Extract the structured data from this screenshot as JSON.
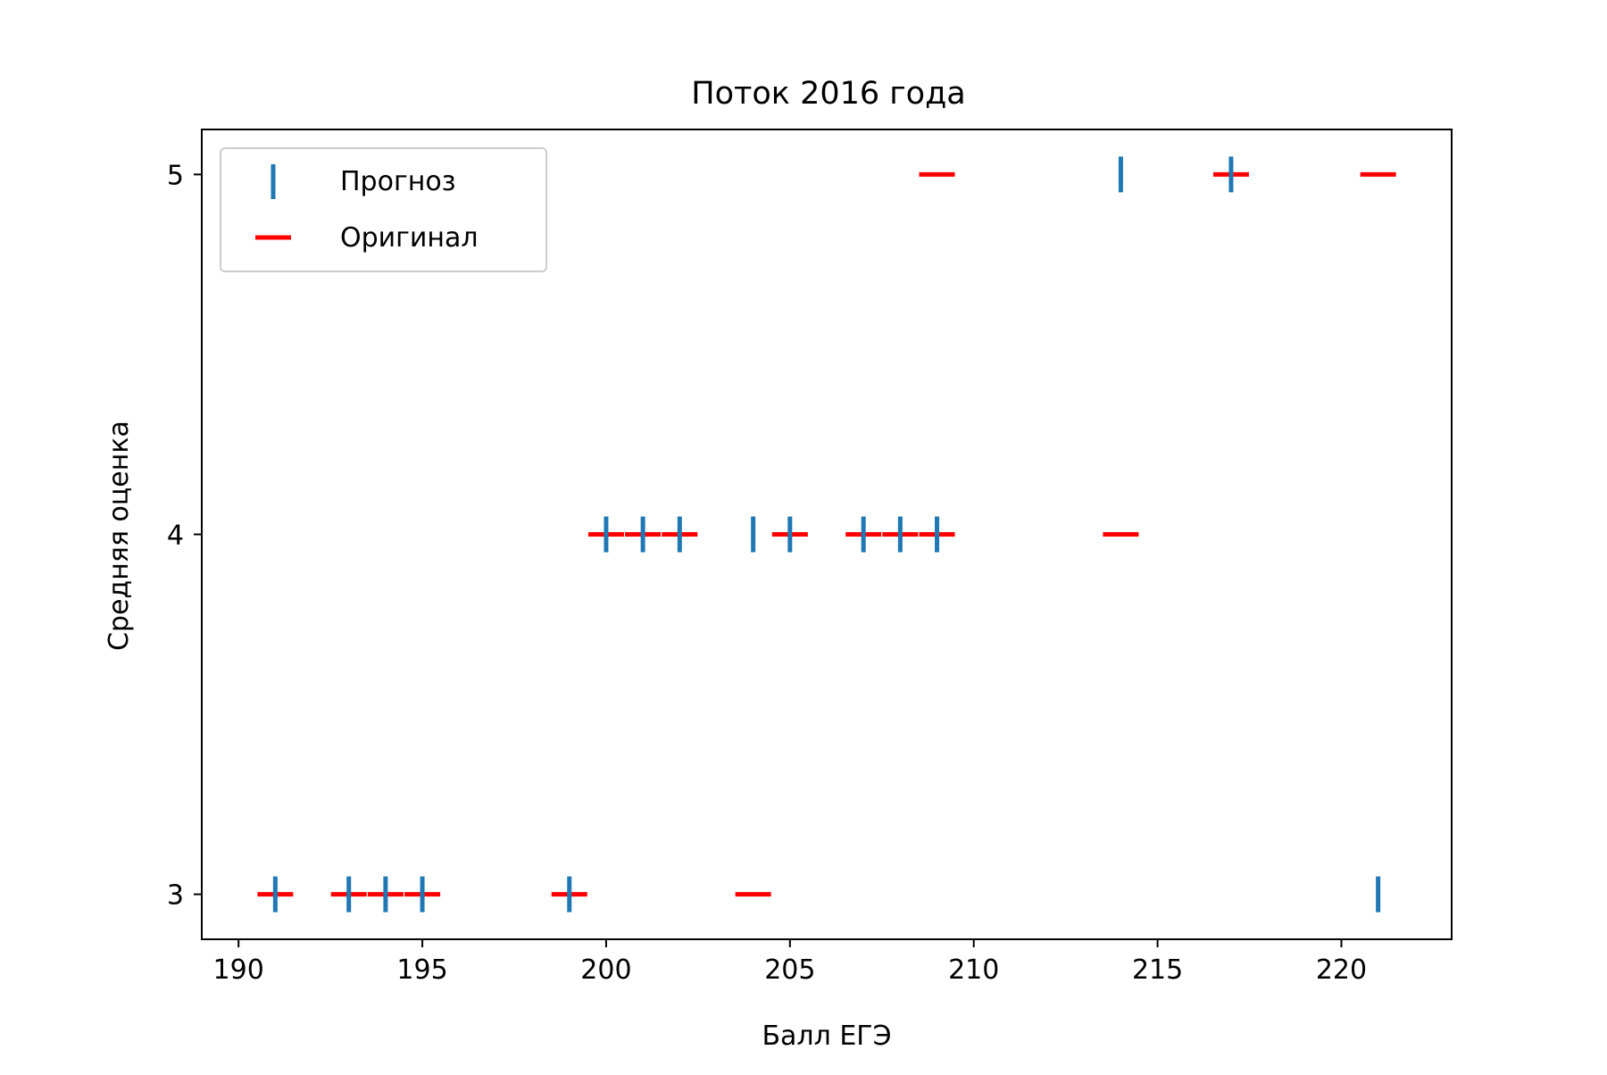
{
  "chart_data": {
    "type": "scatter",
    "title": "Поток 2016 года",
    "xlabel": "Балл ЕГЭ",
    "ylabel": "Средняя оценка",
    "xlim": [
      189,
      223
    ],
    "ylim": [
      2.875,
      5.125
    ],
    "xticks": [
      190,
      195,
      200,
      205,
      210,
      215,
      220
    ],
    "yticks": [
      3,
      4,
      5
    ],
    "grid": false,
    "legend": "top-left",
    "series": [
      {
        "name": "Прогноз",
        "marker": "vline",
        "color": "#1f77b4",
        "points": [
          {
            "x": 191,
            "y": 3
          },
          {
            "x": 193,
            "y": 3
          },
          {
            "x": 194,
            "y": 3
          },
          {
            "x": 195,
            "y": 3
          },
          {
            "x": 199,
            "y": 3
          },
          {
            "x": 221,
            "y": 3
          },
          {
            "x": 200,
            "y": 4
          },
          {
            "x": 201,
            "y": 4
          },
          {
            "x": 202,
            "y": 4
          },
          {
            "x": 204,
            "y": 4
          },
          {
            "x": 205,
            "y": 4
          },
          {
            "x": 207,
            "y": 4
          },
          {
            "x": 208,
            "y": 4
          },
          {
            "x": 209,
            "y": 4
          },
          {
            "x": 214,
            "y": 5
          },
          {
            "x": 217,
            "y": 5
          }
        ]
      },
      {
        "name": "Оригинал",
        "marker": "hline",
        "color": "#ff0000",
        "points": [
          {
            "x": 191,
            "y": 3
          },
          {
            "x": 193,
            "y": 3
          },
          {
            "x": 194,
            "y": 3
          },
          {
            "x": 195,
            "y": 3
          },
          {
            "x": 199,
            "y": 3
          },
          {
            "x": 204,
            "y": 3
          },
          {
            "x": 200,
            "y": 4
          },
          {
            "x": 201,
            "y": 4
          },
          {
            "x": 202,
            "y": 4
          },
          {
            "x": 205,
            "y": 4
          },
          {
            "x": 207,
            "y": 4
          },
          {
            "x": 208,
            "y": 4
          },
          {
            "x": 209,
            "y": 4
          },
          {
            "x": 214,
            "y": 4
          },
          {
            "x": 209,
            "y": 5
          },
          {
            "x": 217,
            "y": 5
          },
          {
            "x": 221,
            "y": 5
          }
        ]
      }
    ]
  }
}
